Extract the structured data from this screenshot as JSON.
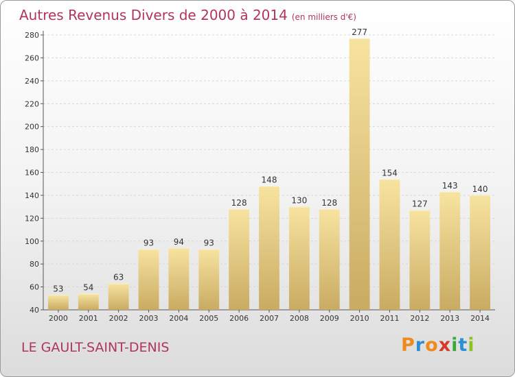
{
  "title": "Autres Revenus Divers de 2000 à 2014",
  "unit": "(en milliers d'€)",
  "commune": "LE GAULT-SAINT-DENIS",
  "logo": {
    "letters": [
      "P",
      "r",
      "o",
      "x",
      "i",
      "t",
      "i"
    ],
    "colors": [
      "#f08a1c",
      "#2a8fd6",
      "#f08a1c",
      "#d63a2a",
      "#3aa83a",
      "#2a8fd6",
      "#8cc21f"
    ]
  },
  "colors": {
    "bar_light": "#f7e3a0",
    "bar_dark": "#c9ab62",
    "text": "#b03460"
  },
  "chart_data": {
    "type": "bar",
    "categories": [
      "2000",
      "2001",
      "2002",
      "2003",
      "2004",
      "2005",
      "2006",
      "2007",
      "2008",
      "2009",
      "2010",
      "2011",
      "2012",
      "2013",
      "2014"
    ],
    "values": [
      53,
      54,
      63,
      93,
      94,
      93,
      128,
      148,
      130,
      128,
      277,
      154,
      127,
      143,
      140
    ],
    "title": "Autres Revenus Divers de 2000 à 2014",
    "ylim": [
      40,
      280
    ],
    "yticks": [
      40,
      60,
      80,
      100,
      120,
      140,
      160,
      180,
      200,
      220,
      240,
      260,
      280
    ],
    "grid": true,
    "data_labels": true
  }
}
